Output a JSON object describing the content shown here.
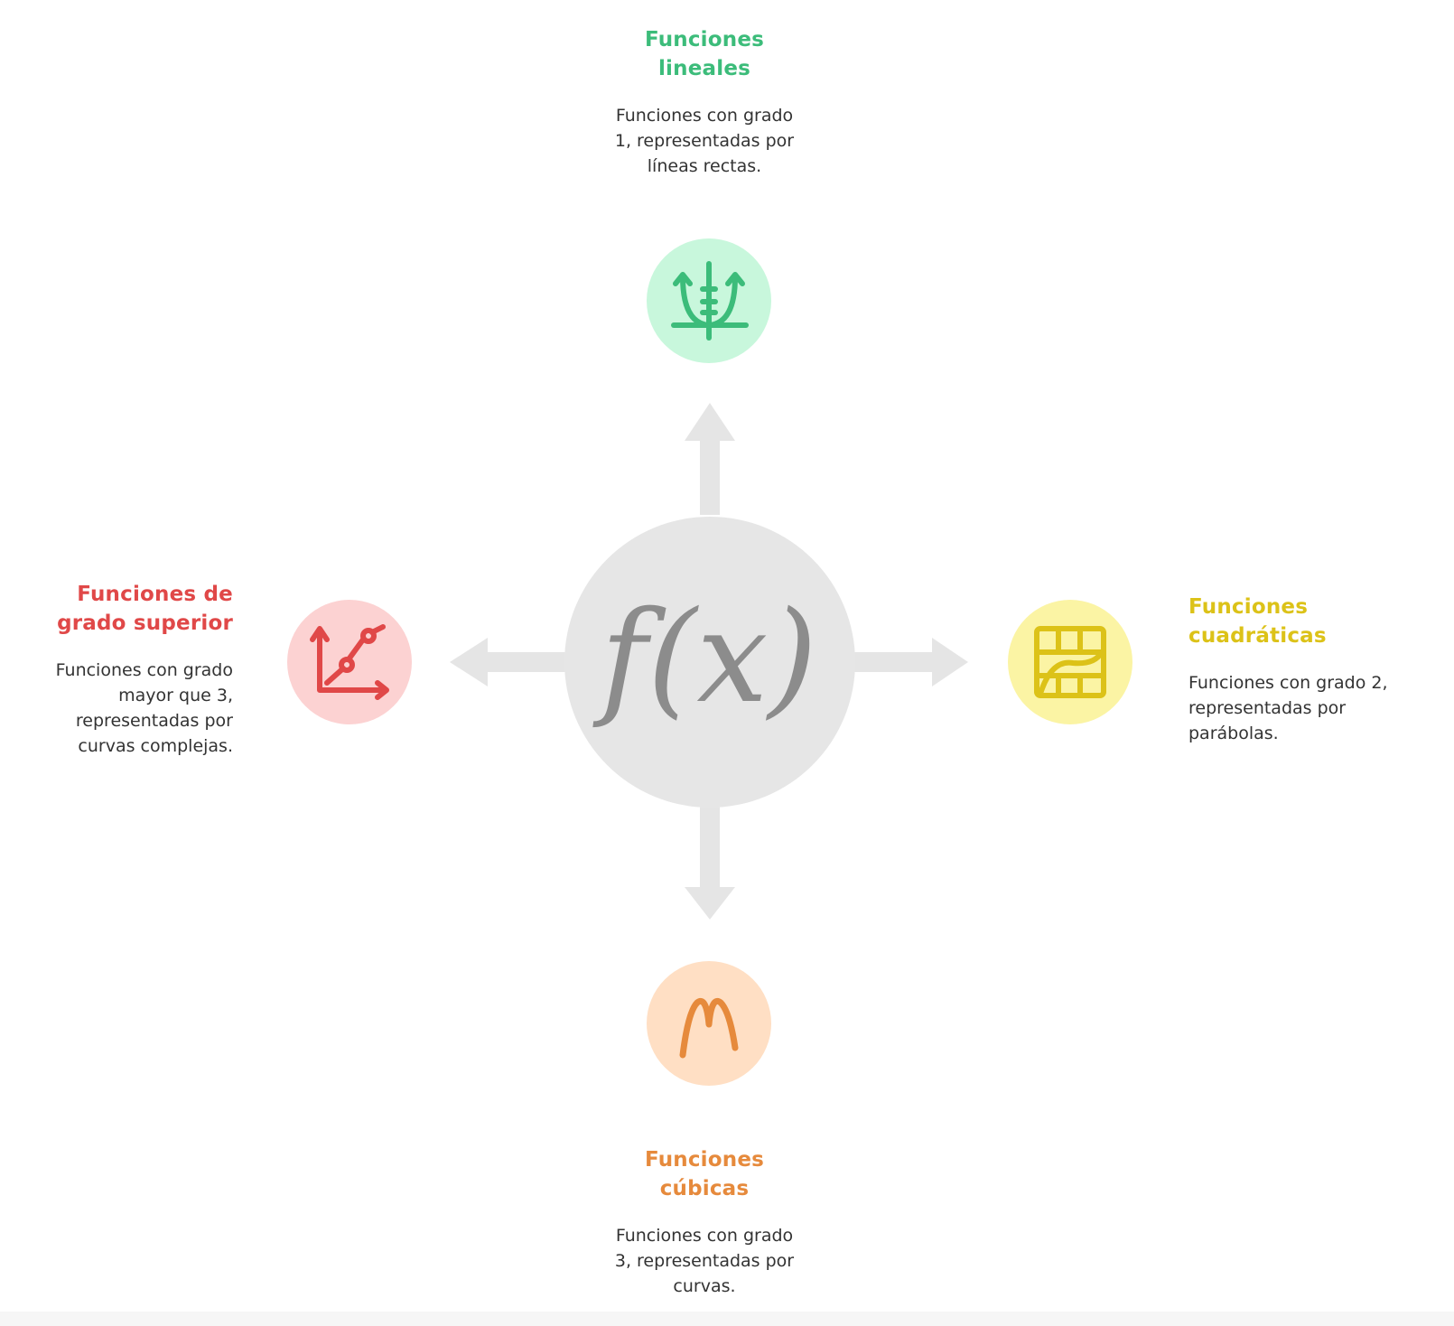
{
  "center": {
    "label": "f(x)",
    "color": "#e6e6e6",
    "text_color": "#8c8c8c"
  },
  "arrow_color": "#e5e5e5",
  "nodes": {
    "top": {
      "title_line1": "Funciones",
      "title_line2": "lineales",
      "desc_line1": "Funciones con grado",
      "desc_line2": "1, representadas por",
      "desc_line3": "líneas rectas.",
      "color": "#3cbc7a",
      "bg": "#c8f7dc",
      "icon": "function-graph-icon"
    },
    "right": {
      "title_line1": "Funciones",
      "title_line2": "cuadráticas",
      "desc_line1": "Funciones con grado 2,",
      "desc_line2": "representadas por",
      "desc_line3": "parábolas.",
      "color": "#dcc218",
      "bg": "#fbf4a4",
      "icon": "grid-curve-icon"
    },
    "bottom": {
      "title_line1": "Funciones",
      "title_line2": "cúbicas",
      "desc_line1": "Funciones con grado",
      "desc_line2": "3, representadas por",
      "desc_line3": "curvas.",
      "color": "#e68a3c",
      "bg": "#ffdfc4",
      "icon": "wave-curve-icon"
    },
    "left": {
      "title_line1": "Funciones de",
      "title_line2": "grado superior",
      "desc_line1": "Funciones con grado",
      "desc_line2": "mayor que 3,",
      "desc_line3": "representadas por",
      "desc_line4": "curvas complejas.",
      "color": "#e04848",
      "bg": "#fcd2d2",
      "icon": "line-chart-icon"
    }
  }
}
